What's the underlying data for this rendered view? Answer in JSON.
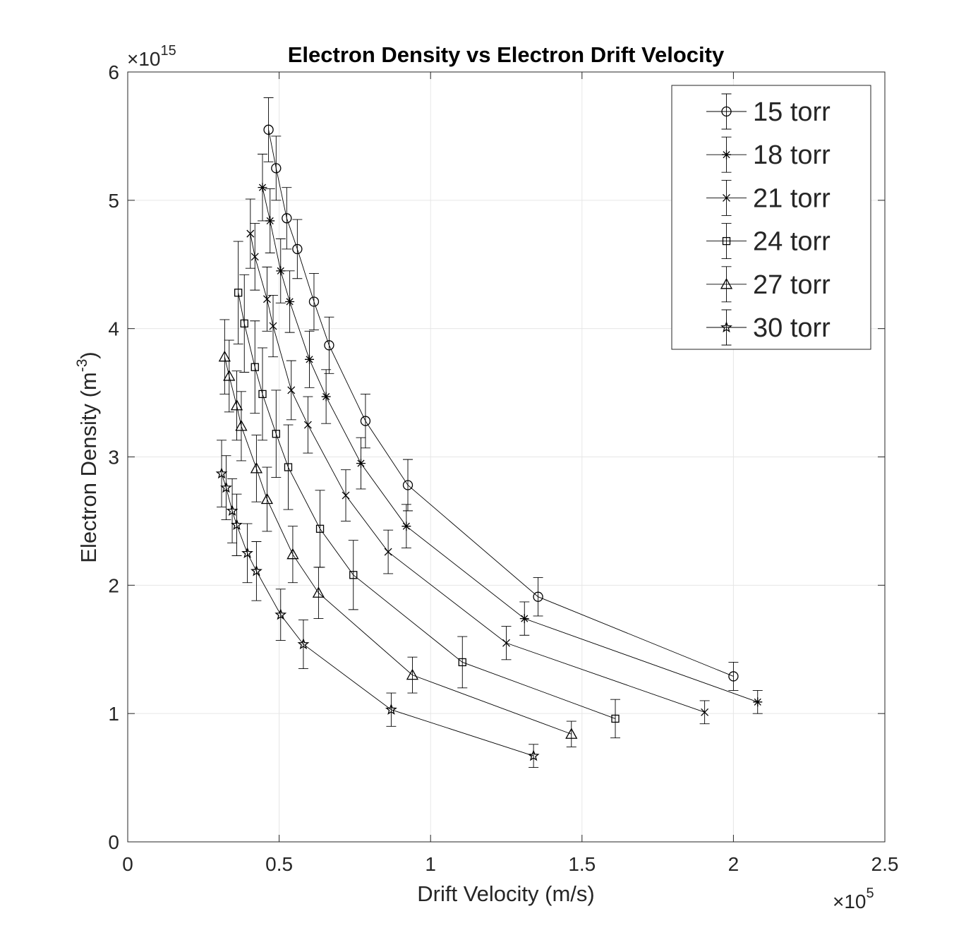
{
  "chart_data": {
    "type": "scatter",
    "title": "Electron Density vs Electron Drift Velocity",
    "xlabel": "Drift Velocity (m/s)",
    "ylabel_base": "Electron Density (m",
    "ylabel_sup": "-3",
    "ylabel_close": ")",
    "x_multiplier_base": "×10",
    "x_multiplier_exp": "5",
    "y_multiplier_base": "×10",
    "y_multiplier_exp": "15",
    "xlim": [
      0,
      2.5
    ],
    "ylim": [
      0,
      6
    ],
    "x_ticks": [
      0,
      0.5,
      1,
      1.5,
      2,
      2.5
    ],
    "x_tick_labels": [
      "0",
      "0.5",
      "1",
      "1.5",
      "2",
      "2.5"
    ],
    "y_ticks": [
      0,
      1,
      2,
      3,
      4,
      5,
      6
    ],
    "y_tick_labels": [
      "0",
      "1",
      "2",
      "3",
      "4",
      "5",
      "6"
    ],
    "grid": true,
    "legend_position": "top-right",
    "series": [
      {
        "name": "15 torr",
        "marker": "circle",
        "x": [
          0.465,
          0.49,
          0.525,
          0.56,
          0.615,
          0.665,
          0.785,
          0.925,
          1.355,
          2.0
        ],
        "y": [
          5.55,
          5.25,
          4.86,
          4.62,
          4.21,
          3.87,
          3.28,
          2.78,
          1.91,
          1.29
        ],
        "err": [
          0.25,
          0.25,
          0.24,
          0.23,
          0.22,
          0.22,
          0.21,
          0.2,
          0.15,
          0.11
        ]
      },
      {
        "name": "18 torr",
        "marker": "asterisk",
        "x": [
          0.445,
          0.47,
          0.505,
          0.535,
          0.6,
          0.655,
          0.77,
          0.92,
          1.31,
          2.08
        ],
        "y": [
          5.1,
          4.84,
          4.45,
          4.21,
          3.76,
          3.47,
          2.95,
          2.46,
          1.74,
          1.09
        ],
        "err": [
          0.26,
          0.25,
          0.25,
          0.24,
          0.22,
          0.21,
          0.2,
          0.17,
          0.13,
          0.09
        ]
      },
      {
        "name": "21 torr",
        "marker": "cross",
        "x": [
          0.405,
          0.42,
          0.46,
          0.48,
          0.54,
          0.595,
          0.72,
          0.86,
          1.25,
          1.905
        ],
        "y": [
          4.74,
          4.56,
          4.23,
          4.02,
          3.52,
          3.25,
          2.7,
          2.26,
          1.55,
          1.01
        ],
        "err": [
          0.27,
          0.26,
          0.25,
          0.24,
          0.23,
          0.22,
          0.2,
          0.17,
          0.13,
          0.09
        ]
      },
      {
        "name": "24 torr",
        "marker": "square",
        "x": [
          0.365,
          0.385,
          0.42,
          0.445,
          0.49,
          0.53,
          0.635,
          0.745,
          1.105,
          1.61
        ],
        "y": [
          4.28,
          4.04,
          3.7,
          3.49,
          3.18,
          2.92,
          2.44,
          2.08,
          1.4,
          0.96
        ],
        "err": [
          0.4,
          0.38,
          0.36,
          0.36,
          0.34,
          0.33,
          0.3,
          0.27,
          0.2,
          0.15
        ]
      },
      {
        "name": "27 torr",
        "marker": "triangle",
        "x": [
          0.32,
          0.335,
          0.36,
          0.375,
          0.425,
          0.46,
          0.545,
          0.63,
          0.94,
          1.465
        ],
        "y": [
          3.78,
          3.63,
          3.4,
          3.24,
          2.91,
          2.67,
          2.24,
          1.94,
          1.3,
          0.84
        ],
        "err": [
          0.29,
          0.28,
          0.27,
          0.27,
          0.26,
          0.25,
          0.22,
          0.2,
          0.14,
          0.1
        ]
      },
      {
        "name": "30 torr",
        "marker": "pentagram",
        "x": [
          0.31,
          0.325,
          0.345,
          0.36,
          0.395,
          0.425,
          0.505,
          0.58,
          0.87,
          1.34
        ],
        "y": [
          2.87,
          2.76,
          2.58,
          2.47,
          2.25,
          2.11,
          1.77,
          1.54,
          1.03,
          0.67
        ],
        "err": [
          0.26,
          0.25,
          0.25,
          0.24,
          0.23,
          0.23,
          0.2,
          0.19,
          0.13,
          0.09
        ]
      }
    ]
  }
}
